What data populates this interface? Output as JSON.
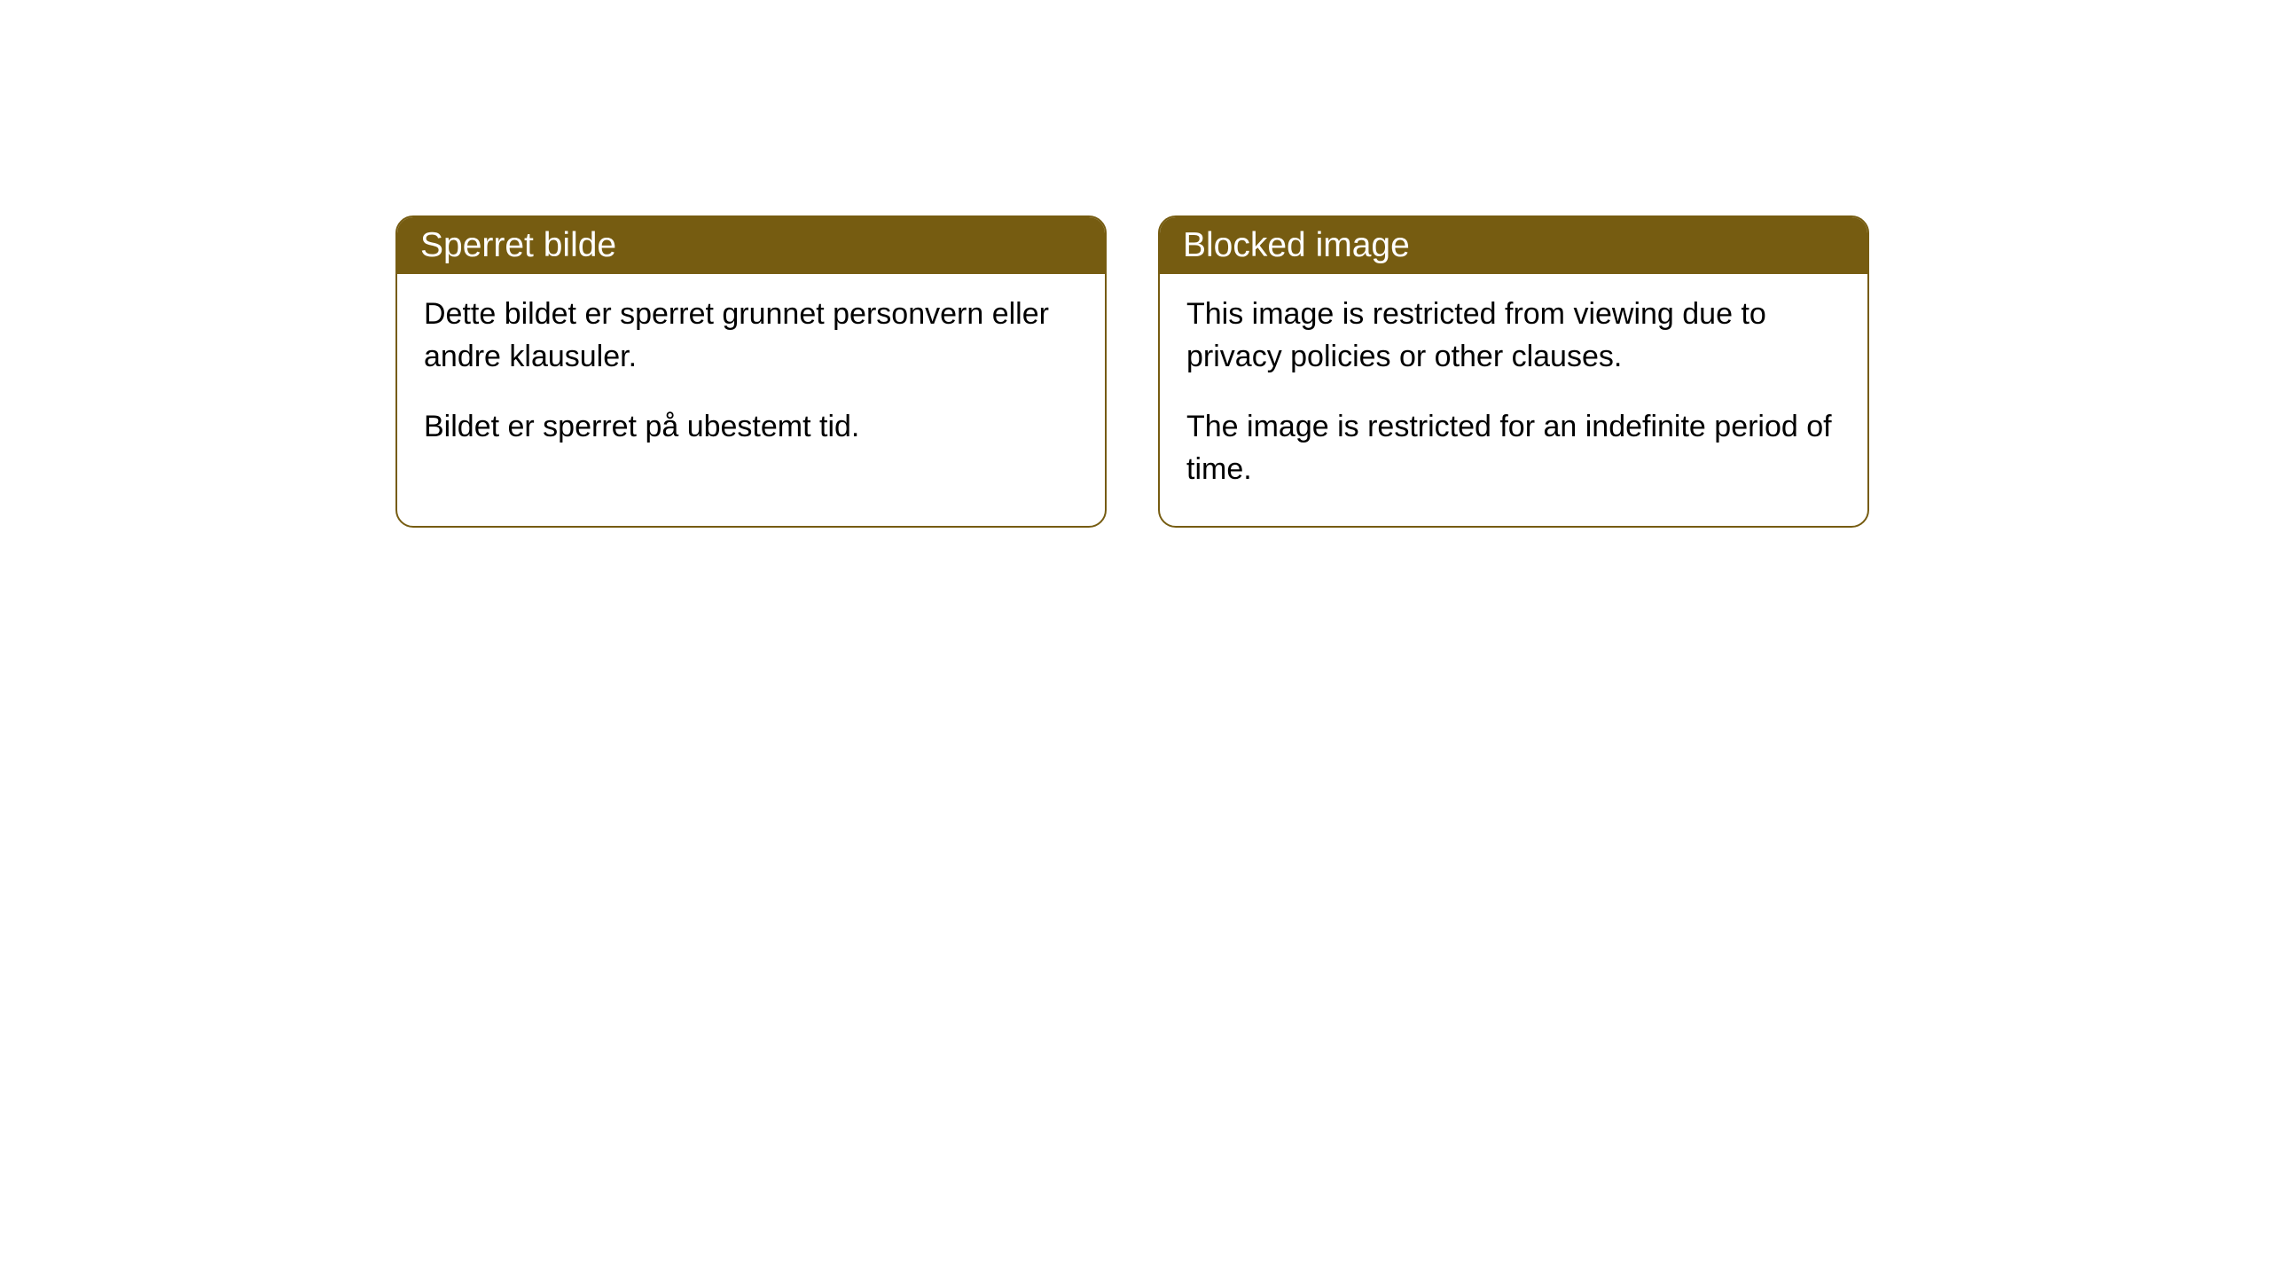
{
  "cards": [
    {
      "title": "Sperret bilde",
      "paragraph1": "Dette bildet er sperret grunnet personvern eller andre klausuler.",
      "paragraph2": "Bildet er sperret på ubestemt tid."
    },
    {
      "title": "Blocked image",
      "paragraph1": "This image is restricted from viewing due to privacy policies or other clauses.",
      "paragraph2": "The image is restricted for an indefinite period of time."
    }
  ],
  "styling": {
    "header_bg_color": "#765c11",
    "header_text_color": "#ffffff",
    "border_color": "#765c11",
    "body_bg_color": "#ffffff",
    "body_text_color": "#000000",
    "border_radius": "20px",
    "title_fontsize": 39,
    "body_fontsize": 34
  }
}
